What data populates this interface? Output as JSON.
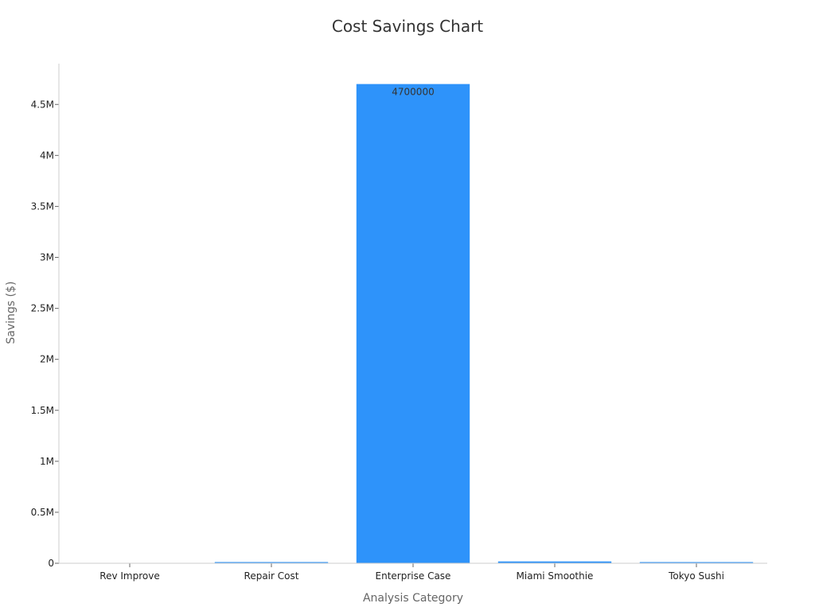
{
  "chart_data": {
    "type": "bar",
    "title": "Cost Savings Chart",
    "xlabel": "Analysis Category",
    "ylabel": "Savings ($)",
    "categories": [
      "Rev Improve",
      "Repair Cost",
      "Enterprise Case",
      "Miami Smoothie",
      "Tokyo Sushi"
    ],
    "values": [
      0,
      12000,
      4700000,
      18000,
      10000
    ],
    "data_labels": [
      "",
      "",
      "4700000",
      "",
      ""
    ],
    "ylim": [
      0,
      4900000
    ],
    "yticks": [
      0,
      500000,
      1000000,
      1500000,
      2000000,
      2500000,
      3000000,
      3500000,
      4000000,
      4500000
    ],
    "ytick_labels": [
      "0",
      "0.5M",
      "1M",
      "1.5M",
      "2M",
      "2.5M",
      "3M",
      "3.5M",
      "4M",
      "4.5M"
    ],
    "bar_color": "#2e93fa",
    "grid": false,
    "legend": "none"
  }
}
